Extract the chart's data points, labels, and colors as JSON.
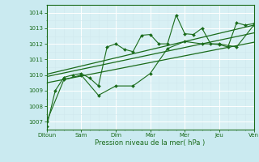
{
  "title": "",
  "xlabel": "Pression niveau de la mer( hPa )",
  "ylabel": "",
  "bg_color": "#caeaf0",
  "grid_color": "#b0d8e0",
  "plot_bg": "#d8f0f4",
  "line_color": "#1a6b1a",
  "xlabels": [
    "Ditoun",
    "Sam",
    "Dim",
    "Mar",
    "Mer",
    "Jeu",
    "Ven"
  ],
  "xtick_positions": [
    0,
    24,
    48,
    72,
    96,
    120,
    144
  ],
  "ylim": [
    1006.5,
    1014.5
  ],
  "yticks": [
    1007,
    1008,
    1009,
    1010,
    1011,
    1012,
    1013,
    1014
  ],
  "series1_x": [
    0,
    6,
    12,
    18,
    24,
    30,
    36,
    42,
    48,
    54,
    60,
    66,
    72,
    78,
    84,
    90,
    96,
    102,
    108,
    114,
    120,
    126,
    132,
    138,
    144
  ],
  "series1_y": [
    1006.7,
    1009.0,
    1009.85,
    1010.0,
    1010.1,
    1009.8,
    1009.3,
    1011.8,
    1012.0,
    1011.65,
    1011.5,
    1012.55,
    1012.6,
    1012.0,
    1012.0,
    1013.85,
    1012.65,
    1012.6,
    1013.0,
    1012.0,
    1011.95,
    1011.8,
    1013.35,
    1013.2,
    1013.3
  ],
  "series2_x": [
    0,
    12,
    24,
    36,
    48,
    60,
    72,
    84,
    96,
    108,
    120,
    132,
    144
  ],
  "series2_y": [
    1007.0,
    1009.7,
    1010.0,
    1008.7,
    1009.3,
    1009.3,
    1010.1,
    1011.7,
    1012.15,
    1012.0,
    1012.0,
    1011.8,
    1013.2
  ],
  "trend1_x": [
    0,
    144
  ],
  "trend1_y": [
    1009.5,
    1012.1
  ],
  "trend2_x": [
    0,
    144
  ],
  "trend2_y": [
    1009.9,
    1012.7
  ],
  "trend3_x": [
    0,
    144
  ],
  "trend3_y": [
    1010.05,
    1013.2
  ]
}
